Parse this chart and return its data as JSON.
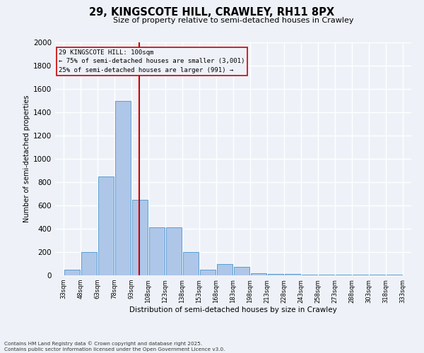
{
  "title_line1": "29, KINGSCOTE HILL, CRAWLEY, RH11 8PX",
  "title_line2": "Size of property relative to semi-detached houses in Crawley",
  "xlabel": "Distribution of semi-detached houses by size in Crawley",
  "ylabel": "Number of semi-detached properties",
  "bins": [
    33,
    48,
    63,
    78,
    93,
    108,
    123,
    138,
    153,
    168,
    183,
    198,
    213,
    228,
    243,
    258,
    273,
    288,
    303,
    318,
    333
  ],
  "bar_heights": [
    50,
    200,
    850,
    1500,
    650,
    410,
    410,
    200,
    50,
    100,
    75,
    20,
    15,
    10,
    5,
    5,
    5,
    5,
    5,
    5
  ],
  "bar_color": "#aec6e8",
  "bar_edge_color": "#5a9fd4",
  "property_size": 100,
  "red_line_color": "#cc0000",
  "ylim": [
    0,
    2000
  ],
  "yticks": [
    0,
    200,
    400,
    600,
    800,
    1000,
    1200,
    1400,
    1600,
    1800,
    2000
  ],
  "annotation_title": "29 KINGSCOTE HILL: 100sqm",
  "annotation_line1": "← 75% of semi-detached houses are smaller (3,001)",
  "annotation_line2": "25% of semi-detached houses are larger (991) →",
  "annotation_box_color": "#cc0000",
  "footnote_line1": "Contains HM Land Registry data © Crown copyright and database right 2025.",
  "footnote_line2": "Contains public sector information licensed under the Open Government Licence v3.0.",
  "bg_color": "#eef2f8",
  "grid_color": "#ffffff"
}
